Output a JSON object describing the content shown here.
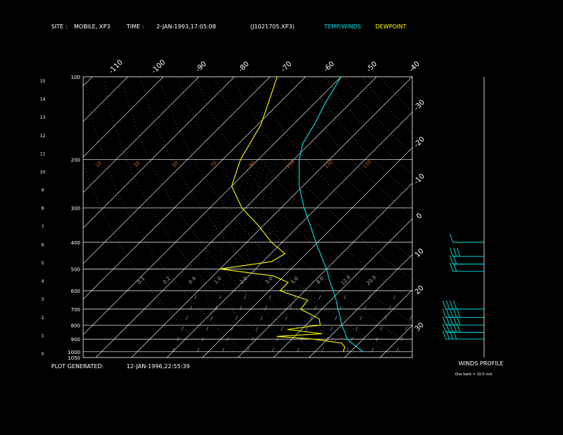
{
  "header": {
    "site_label": "SITE :",
    "site_value": "MOBILE, XP3",
    "time_label": "TIME :",
    "time_value": "2-JAN-1993,17:05:08",
    "file_value": "(J1021705.XP3)",
    "legend_temp": "TEMP/WINDS",
    "legend_dew": "DEWPOINT"
  },
  "footer": {
    "generated_label": "PLOT GENERATED:",
    "generated_value": "12-JAN-1996,22:55:39",
    "winds_title": "WINDS PROFILE",
    "winds_note": "One barb = 10.0 m/s"
  },
  "colors": {
    "background": "#000000",
    "temp": "#00e5e5",
    "dewpoint": "#ffff00",
    "isotherm": "#ffffff",
    "isobar": "#ffffff",
    "dry_adiabat": "#c8641e",
    "moist_adiabat": "#1e78c8",
    "mixing_ratio": "#b4b4b4"
  },
  "chart_data": {
    "type": "line",
    "chart_kind": "skew-T log-P sounding",
    "pressure_levels": [
      1050,
      1000,
      900,
      800,
      700,
      600,
      500,
      400,
      300,
      200,
      100
    ],
    "pressure_labels": [
      "1050",
      "1000",
      "900",
      "800",
      "700",
      "600",
      "500",
      "400",
      "300",
      "200",
      "100"
    ],
    "height_ticks": [
      "0",
      "1",
      "2",
      "3",
      "4",
      "5",
      "6",
      "7",
      "8",
      "9",
      "10",
      "11",
      "12",
      "13",
      "14",
      "15"
    ],
    "skewed_temp_labels": [
      "-110",
      "-100",
      "-90",
      "-80",
      "-70",
      "-60",
      "-50",
      "-40"
    ],
    "right_temp_labels": [
      "-30",
      "-20",
      "-10",
      "0",
      "10",
      "20",
      "30"
    ],
    "dry_adiabat_labels": [
      "10",
      "30",
      "50",
      "70",
      "90",
      "110",
      "130",
      "150"
    ],
    "mixing_ratio_labels": [
      "0.1",
      "0.2",
      "0.4",
      "1.0",
      "2.0",
      "3.0",
      "5.0",
      "8.0",
      "12.0",
      "20.0"
    ],
    "axis_ranges": {
      "pressure_hPa": [
        1050,
        100
      ],
      "height_km": [
        0,
        15
      ]
    },
    "series": [
      {
        "name": "TEMP/WINDS",
        "points": [
          {
            "p": 1000,
            "t": 13.5
          },
          {
            "p": 950,
            "t": 9.5
          },
          {
            "p": 900,
            "t": 5.5
          },
          {
            "p": 850,
            "t": 3.0
          },
          {
            "p": 800,
            "t": 0.0
          },
          {
            "p": 750,
            "t": -2.5
          },
          {
            "p": 700,
            "t": -5.5
          },
          {
            "p": 650,
            "t": -8.5
          },
          {
            "p": 600,
            "t": -12.0
          },
          {
            "p": 550,
            "t": -16.0
          },
          {
            "p": 500,
            "t": -20.0
          },
          {
            "p": 450,
            "t": -25.0
          },
          {
            "p": 400,
            "t": -30.5
          },
          {
            "p": 350,
            "t": -36.5
          },
          {
            "p": 300,
            "t": -43.5
          },
          {
            "p": 250,
            "t": -51.0
          },
          {
            "p": 200,
            "t": -58.5
          },
          {
            "p": 175,
            "t": -62.0
          },
          {
            "p": 150,
            "t": -64.0
          },
          {
            "p": 125,
            "t": -67.0
          },
          {
            "p": 100,
            "t": -70.0
          }
        ]
      },
      {
        "name": "DEWPOINT",
        "points": [
          {
            "p": 1000,
            "t": 8.0
          },
          {
            "p": 960,
            "t": 7.0
          },
          {
            "p": 930,
            "t": 5.0
          },
          {
            "p": 900,
            "t": -4.0
          },
          {
            "p": 880,
            "t": -15.0
          },
          {
            "p": 860,
            "t": -3.0
          },
          {
            "p": 830,
            "t": -14.0
          },
          {
            "p": 800,
            "t": -6.0
          },
          {
            "p": 760,
            "t": -8.0
          },
          {
            "p": 700,
            "t": -16.0
          },
          {
            "p": 650,
            "t": -16.5
          },
          {
            "p": 600,
            "t": -27.0
          },
          {
            "p": 560,
            "t": -27.0
          },
          {
            "p": 530,
            "t": -33.0
          },
          {
            "p": 500,
            "t": -50.0
          },
          {
            "p": 470,
            "t": -37.5
          },
          {
            "p": 440,
            "t": -36.0
          },
          {
            "p": 400,
            "t": -43.0
          },
          {
            "p": 350,
            "t": -51.0
          },
          {
            "p": 300,
            "t": -61.0
          },
          {
            "p": 250,
            "t": -70.0
          },
          {
            "p": 200,
            "t": -75.0
          },
          {
            "p": 150,
            "t": -79.0
          },
          {
            "p": 125,
            "t": -83.0
          },
          {
            "p": 100,
            "t": -88.0
          }
        ]
      }
    ],
    "winds": [
      {
        "p": 400,
        "barbs": 1
      },
      {
        "p": 450,
        "barbs": 3
      },
      {
        "p": 480,
        "barbs": 2
      },
      {
        "p": 510,
        "barbs": 2
      },
      {
        "p": 700,
        "barbs": 4
      },
      {
        "p": 750,
        "barbs": 5
      },
      {
        "p": 800,
        "barbs": 5
      },
      {
        "p": 850,
        "barbs": 5
      },
      {
        "p": 900,
        "barbs": 4
      }
    ]
  }
}
